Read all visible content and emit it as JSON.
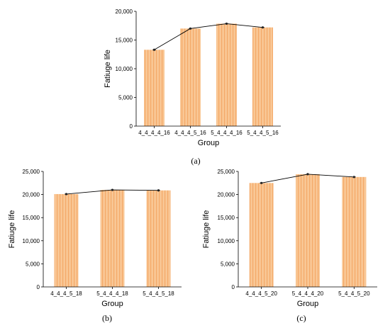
{
  "colors": {
    "bar_fill": "#f9c795",
    "bar_stripe": "#f4a968",
    "line": "#000000"
  },
  "chart_data": [
    {
      "type": "bar",
      "panel_label": "(a)",
      "xlabel": "Group",
      "ylabel": "Fatiuge life",
      "categories": [
        "4_4_4_4_16",
        "4_4_4_5_16",
        "5_4_4_4_16",
        "5_4_4_5_16"
      ],
      "values": [
        13300,
        17000,
        17850,
        17200
      ],
      "ylim": [
        0,
        20000
      ],
      "yticks": [
        0,
        5000,
        10000,
        15000,
        20000
      ],
      "ytick_labels": [
        "0",
        "5,000",
        "10,000",
        "15,000",
        "20,000"
      ],
      "line_overlay": true,
      "grid": false
    },
    {
      "type": "bar",
      "panel_label": "(b)",
      "xlabel": "Group",
      "ylabel": "Fatiuge life",
      "categories": [
        "4_4_4_5_18",
        "5_4_4_4_18",
        "5_4_4_5_18"
      ],
      "values": [
        20100,
        21000,
        20900
      ],
      "ylim": [
        0,
        25000
      ],
      "yticks": [
        0,
        5000,
        10000,
        15000,
        20000,
        25000
      ],
      "ytick_labels": [
        "0",
        "5,000",
        "10,000",
        "15,000",
        "20,000",
        "25,000"
      ],
      "line_overlay": true,
      "grid": false
    },
    {
      "type": "bar",
      "panel_label": "(c)",
      "xlabel": "Group",
      "ylabel": "Fatiuge life",
      "categories": [
        "4_4_4_5_20",
        "5_4_4_4_20",
        "5_4_4_5_20"
      ],
      "values": [
        22500,
        24400,
        23800
      ],
      "ylim": [
        0,
        25000
      ],
      "yticks": [
        0,
        5000,
        10000,
        15000,
        20000,
        25000
      ],
      "ytick_labels": [
        "0",
        "5,000",
        "10,000",
        "15,000",
        "20,000",
        "25,000"
      ],
      "line_overlay": true,
      "grid": false
    }
  ]
}
